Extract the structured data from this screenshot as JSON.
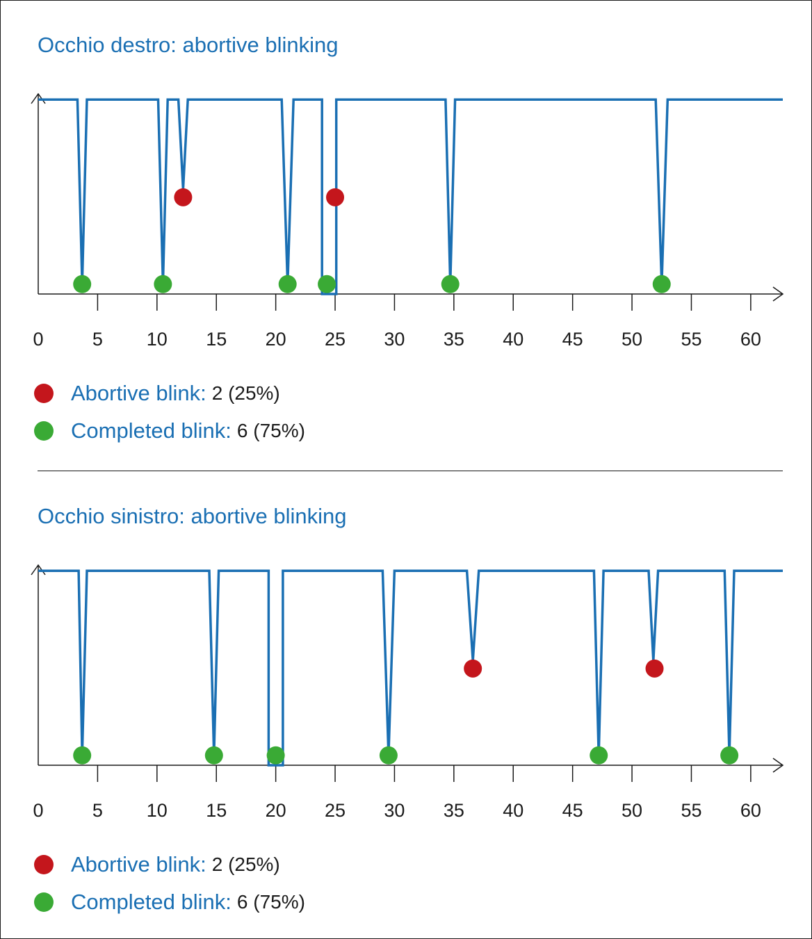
{
  "colors": {
    "signal": "#1a6fb3",
    "abortive": "#c4161c",
    "completed": "#3aaa35",
    "axis": "#1a1a1a"
  },
  "chart_data": [
    {
      "type": "line",
      "title": "Occhio destro: abortive blinking",
      "xlabel": "",
      "ylabel": "",
      "xlim": [
        0,
        62.7
      ],
      "ylim": [
        0,
        1
      ],
      "xticks": [
        0,
        5,
        10,
        15,
        20,
        25,
        30,
        35,
        40,
        45,
        50,
        55,
        60
      ],
      "grid": false,
      "legend_position": "bottom-left",
      "signal": [
        [
          0,
          0.985
        ],
        [
          3.3,
          0.985
        ],
        [
          3.7,
          0.05
        ],
        [
          4.1,
          0.985
        ],
        [
          10.1,
          0.985
        ],
        [
          10.5,
          0.05
        ],
        [
          10.9,
          0.985
        ],
        [
          11.8,
          0.985
        ],
        [
          12.2,
          0.53
        ],
        [
          12.6,
          0.985
        ],
        [
          20.5,
          0.985
        ],
        [
          21.0,
          0.05
        ],
        [
          21.5,
          0.985
        ],
        [
          23.9,
          0.985
        ],
        [
          23.9,
          0.0
        ],
        [
          25.1,
          0.0
        ],
        [
          25.1,
          0.985
        ],
        [
          34.3,
          0.985
        ],
        [
          34.7,
          0.05
        ],
        [
          35.1,
          0.985
        ],
        [
          52.0,
          0.985
        ],
        [
          52.5,
          0.05
        ],
        [
          53.0,
          0.985
        ],
        [
          62.7,
          0.985
        ]
      ],
      "abortive_blinks": [
        [
          12.2,
          0.49
        ],
        [
          25.0,
          0.49
        ]
      ],
      "completed_blinks": [
        [
          3.7,
          0.05
        ],
        [
          10.5,
          0.05
        ],
        [
          21.0,
          0.05
        ],
        [
          24.3,
          0.05
        ],
        [
          34.7,
          0.05
        ],
        [
          52.5,
          0.05
        ]
      ],
      "legend": [
        {
          "key": "abortive",
          "label": "Abortive blink:",
          "value": "2 (25%)"
        },
        {
          "key": "completed",
          "label": "Completed blink:",
          "value": "6 (75%)"
        }
      ]
    },
    {
      "type": "line",
      "title": "Occhio sinistro: abortive blinking",
      "xlabel": "",
      "ylabel": "",
      "xlim": [
        0,
        62.7
      ],
      "ylim": [
        0,
        1
      ],
      "xticks": [
        0,
        5,
        10,
        15,
        20,
        25,
        30,
        35,
        40,
        45,
        50,
        55,
        60
      ],
      "grid": false,
      "legend_position": "bottom-left",
      "signal": [
        [
          0,
          0.985
        ],
        [
          3.4,
          0.985
        ],
        [
          3.7,
          0.05
        ],
        [
          4.1,
          0.985
        ],
        [
          14.4,
          0.985
        ],
        [
          14.8,
          0.05
        ],
        [
          15.2,
          0.985
        ],
        [
          19.4,
          0.985
        ],
        [
          19.4,
          0.0
        ],
        [
          20.6,
          0.0
        ],
        [
          20.6,
          0.985
        ],
        [
          29.0,
          0.985
        ],
        [
          29.5,
          0.05
        ],
        [
          30.0,
          0.985
        ],
        [
          36.1,
          0.985
        ],
        [
          36.6,
          0.53
        ],
        [
          37.1,
          0.985
        ],
        [
          46.8,
          0.985
        ],
        [
          47.2,
          0.05
        ],
        [
          47.6,
          0.985
        ],
        [
          51.4,
          0.985
        ],
        [
          51.8,
          0.53
        ],
        [
          52.2,
          0.985
        ],
        [
          57.8,
          0.985
        ],
        [
          58.2,
          0.05
        ],
        [
          58.6,
          0.985
        ],
        [
          62.7,
          0.985
        ]
      ],
      "abortive_blinks": [
        [
          36.6,
          0.49
        ],
        [
          51.9,
          0.49
        ]
      ],
      "completed_blinks": [
        [
          3.7,
          0.05
        ],
        [
          14.8,
          0.05
        ],
        [
          20.0,
          0.05
        ],
        [
          29.5,
          0.05
        ],
        [
          47.2,
          0.05
        ],
        [
          58.2,
          0.05
        ]
      ],
      "legend": [
        {
          "key": "abortive",
          "label": "Abortive blink:",
          "value": "2 (25%)"
        },
        {
          "key": "completed",
          "label": "Completed blink:",
          "value": "6 (75%)"
        }
      ]
    }
  ]
}
